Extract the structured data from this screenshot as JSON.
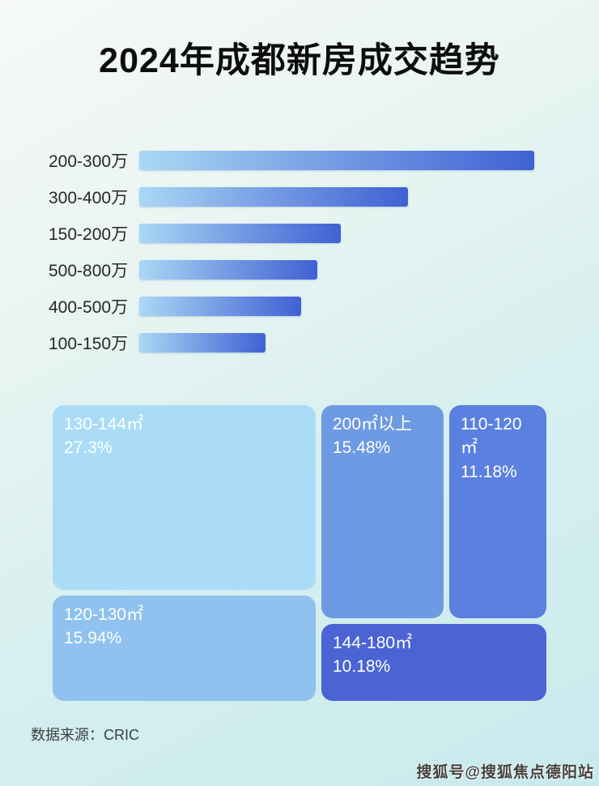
{
  "header": {
    "title": "2024年成都新房成交趋势"
  },
  "footer": {
    "source": "数据来源：CRIC",
    "watermark": "搜狐号@搜狐焦点德阳站"
  },
  "colors": {
    "bar_gradient_start": "#aad8f4",
    "bar_gradient_end": "#4061d3",
    "background_top": "#f6f8f8",
    "background_bottom": "#c7eaee",
    "title_text": "#0d0d0d",
    "treemap_text": "#ffffff"
  },
  "chart_data": [
    {
      "type": "bar",
      "orientation": "horizontal",
      "title": "2024年成都新房成交趋势",
      "categories": [
        "200-300万",
        "300-400万",
        "150-200万",
        "500-800万",
        "400-500万",
        "100-150万"
      ],
      "values": [
        100,
        68,
        51,
        45,
        41,
        32
      ],
      "values_unit": "relative bar length, % of longest bar (no numeric axis shown in image)",
      "xlabel": "",
      "ylabel": "",
      "grid": false,
      "legend": false
    },
    {
      "type": "treemap",
      "items": [
        {
          "label": "130-144㎡",
          "percent": "27.3%",
          "value": 27.3,
          "color": "#aadcf7"
        },
        {
          "label": "200㎡以上",
          "percent": "15.48%",
          "value": 15.48,
          "color": "#6d9ae3"
        },
        {
          "label": "110-120㎡",
          "percent": "11.18%",
          "value": 11.18,
          "color": "#5a80e0"
        },
        {
          "label": "120-130㎡",
          "percent": "15.94%",
          "value": 15.94,
          "color": "#8fc2ee"
        },
        {
          "label": "144-180㎡",
          "percent": "10.18%",
          "value": 10.18,
          "color": "#4a64d4"
        }
      ]
    }
  ]
}
